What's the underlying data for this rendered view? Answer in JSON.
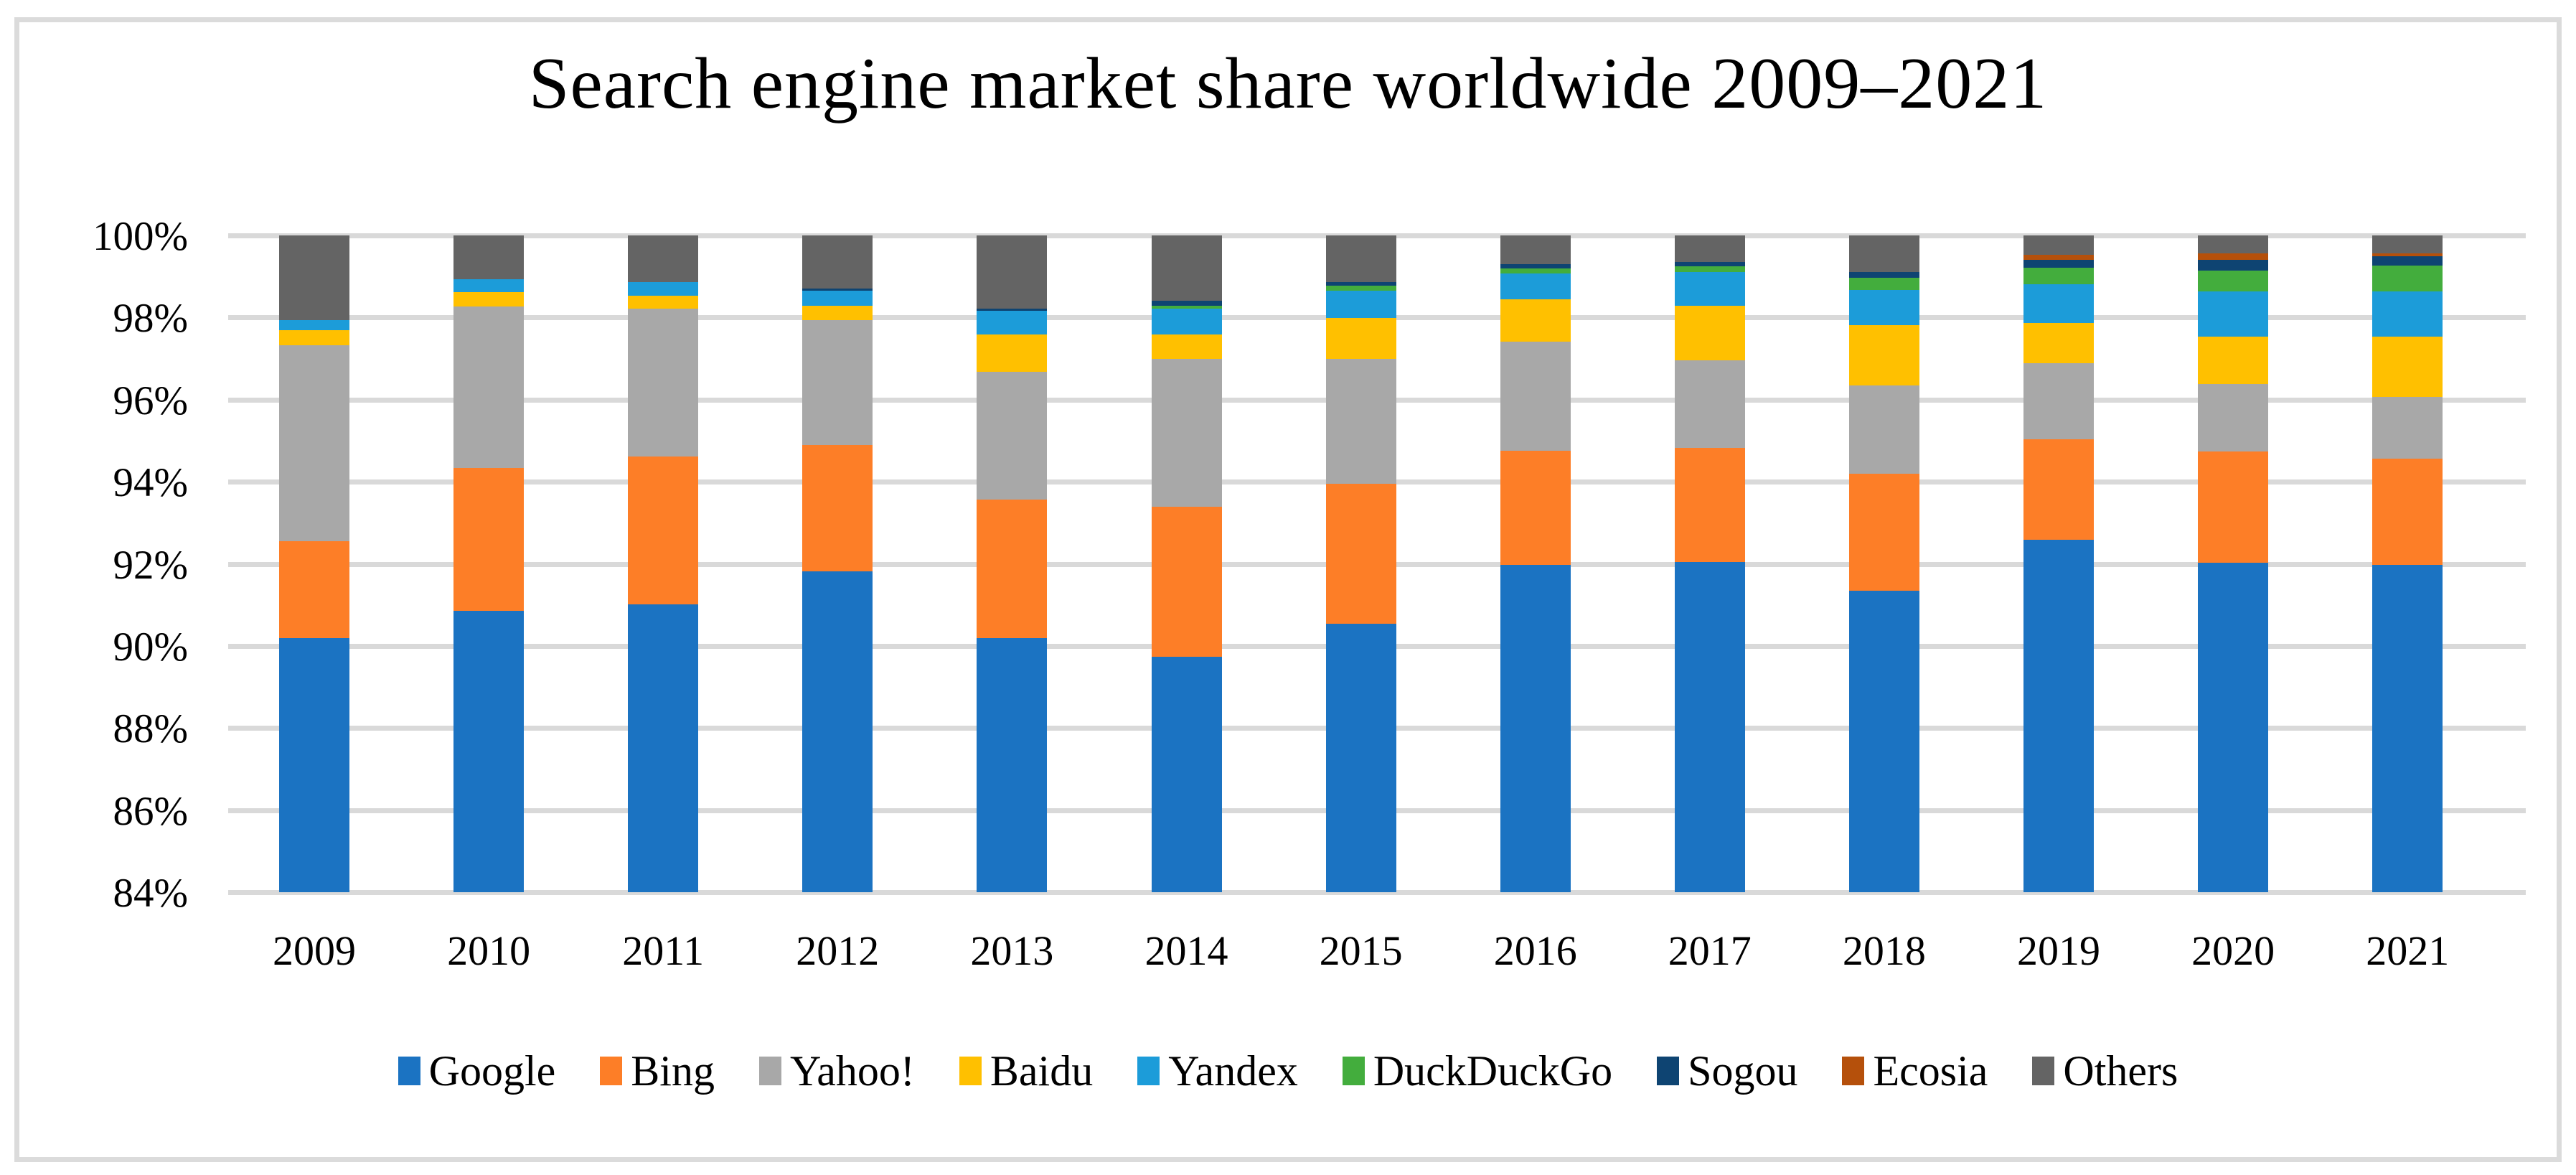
{
  "figure": {
    "title": "Search engine market share worldwide 2009–2021"
  },
  "chart_data": {
    "type": "bar",
    "subtype": "stacked-percent-column",
    "title": "Search engine market share worldwide 2009–2021",
    "xlabel": "",
    "ylabel": "",
    "ylim": [
      84,
      100
    ],
    "grid": true,
    "legend_position": "bottom",
    "ytick_labels": [
      "100%",
      "98%",
      "96%",
      "94%",
      "92%",
      "90%",
      "88%",
      "86%",
      "84%"
    ],
    "ytick_values": [
      100,
      98,
      96,
      94,
      92,
      90,
      88,
      86,
      84
    ],
    "categories": [
      "2009",
      "2010",
      "2011",
      "2012",
      "2013",
      "2014",
      "2015",
      "2016",
      "2017",
      "2018",
      "2019",
      "2020",
      "2021"
    ],
    "series": [
      {
        "name": "Google",
        "color": "#1B73C2",
        "values": [
          90.2,
          90.86,
          91.01,
          91.81,
          90.19,
          89.74,
          90.55,
          91.97,
          92.05,
          91.35,
          92.58,
          92.02,
          91.98
        ]
      },
      {
        "name": "Bing",
        "color": "#FD7E27",
        "values": [
          2.35,
          3.48,
          3.61,
          3.09,
          3.37,
          3.65,
          3.4,
          2.78,
          2.77,
          2.85,
          2.46,
          2.71,
          2.58
        ]
      },
      {
        "name": "Yahoo!",
        "color": "#A8A8A8",
        "values": [
          4.78,
          3.93,
          3.59,
          3.04,
          3.12,
          3.61,
          3.05,
          2.66,
          2.14,
          2.14,
          1.84,
          1.65,
          1.5
        ]
      },
      {
        "name": "Baidu",
        "color": "#FFC000",
        "values": [
          0.36,
          0.35,
          0.33,
          0.34,
          0.91,
          0.59,
          0.99,
          1.03,
          1.33,
          1.47,
          0.99,
          1.15,
          1.47
        ]
      },
      {
        "name": "Yandex",
        "color": "#1C9CD9",
        "values": [
          0.24,
          0.31,
          0.32,
          0.37,
          0.57,
          0.63,
          0.67,
          0.64,
          0.81,
          0.87,
          0.94,
          1.11,
          1.1
        ]
      },
      {
        "name": "DuckDuckGo",
        "color": "#43AD3D",
        "values": [
          0,
          0,
          0,
          0,
          0,
          0.07,
          0.11,
          0.12,
          0.15,
          0.28,
          0.41,
          0.5,
          0.63
        ]
      },
      {
        "name": "Sogou",
        "color": "#0E4472",
        "values": [
          0,
          0,
          0,
          0.05,
          0.05,
          0.12,
          0.1,
          0.1,
          0.1,
          0.15,
          0.19,
          0.27,
          0.23
        ]
      },
      {
        "name": "Ecosia",
        "color": "#B5500B",
        "values": [
          0,
          0,
          0,
          0,
          0,
          0,
          0,
          0,
          0,
          0,
          0.12,
          0.15,
          0.08
        ]
      },
      {
        "name": "Others",
        "color": "#646464",
        "values": [
          2.07,
          1.07,
          1.14,
          1.3,
          1.79,
          1.59,
          1.13,
          0.7,
          0.65,
          0.89,
          0.47,
          0.44,
          0.43
        ]
      }
    ]
  }
}
